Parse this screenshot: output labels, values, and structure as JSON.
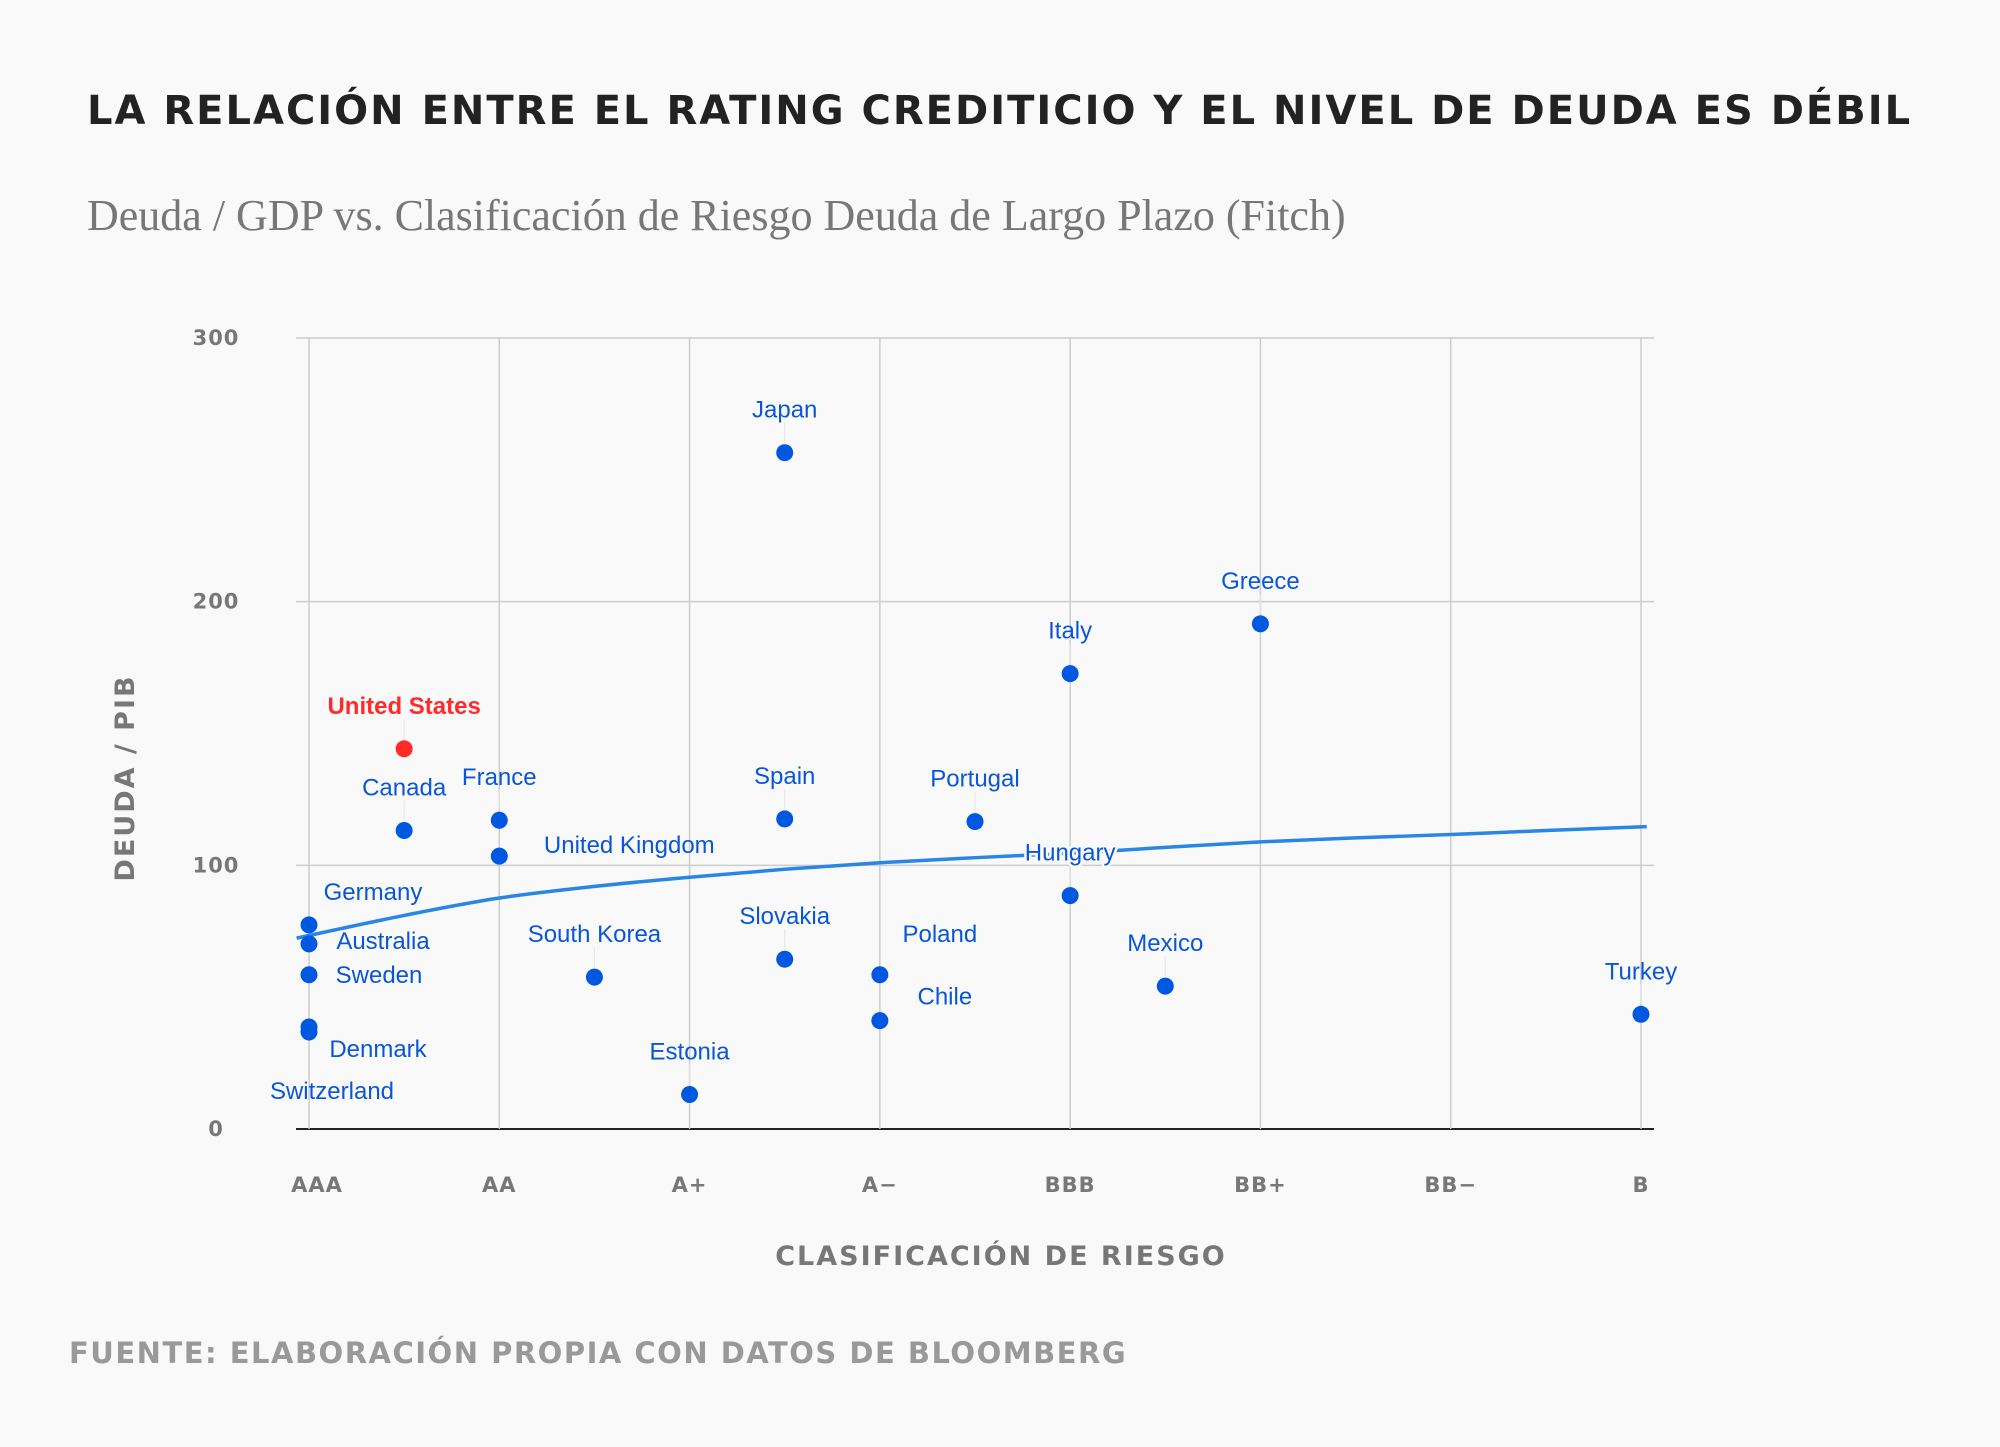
{
  "chart_data": {
    "type": "scatter",
    "title": "LA RELACIÓN ENTRE EL RATING CREDITICIO Y EL NIVEL DE DEUDA ES DÉBIL",
    "subtitle": "Deuda / GDP vs. Clasificación de Riesgo Deuda de Largo Plazo (Fitch)",
    "xlabel": "CLASIFICACIÓN DE RIESGO",
    "ylabel": "DEUDA / PIB",
    "source": "FUENTE: ELABORACIÓN PROPIA CON DATOS DE BLOOMBERG",
    "x_scale": [
      "AAA",
      "AA+",
      "AA",
      "AA-",
      "A+",
      "A",
      "A-",
      "BBB+",
      "BBB",
      "BBB-",
      "BB+",
      "BB",
      "BB-",
      "B+",
      "B"
    ],
    "x_ticks": [
      "AAA",
      "AA",
      "A+",
      "A−",
      "BBB",
      "BB+",
      "BB−",
      "B"
    ],
    "y_ticks": [
      "0",
      "100",
      "200",
      "300"
    ],
    "ylim": [
      0,
      300
    ],
    "grid": true,
    "colors": {
      "point": "#0057e0",
      "highlight": "#ff2b2b",
      "trend": "#2a86e3",
      "label": "#0a56d6",
      "grid": "#cccccc"
    },
    "points": [
      {
        "name": "Japan",
        "rating": "A",
        "y": 256.5
      },
      {
        "name": "Greece",
        "rating": "BB+",
        "y": 191.6
      },
      {
        "name": "Italy",
        "rating": "BBB",
        "y": 172.7
      },
      {
        "name": "United States",
        "rating": "AA+",
        "y": 144.2,
        "highlight": true
      },
      {
        "name": "Spain",
        "rating": "A",
        "y": 117.6
      },
      {
        "name": "Portugal",
        "rating": "BBB+",
        "y": 116.6
      },
      {
        "name": "France",
        "rating": "AA",
        "y": 117.1
      },
      {
        "name": "Canada",
        "rating": "AA+",
        "y": 113.2
      },
      {
        "name": "United Kingdom",
        "rating": "AA",
        "y": 103.5
      },
      {
        "name": "Hungary",
        "rating": "BBB",
        "y": 88.5
      },
      {
        "name": "Germany",
        "rating": "AAA",
        "y": 77.4
      },
      {
        "name": "Australia",
        "rating": "AAA",
        "y": 70.2
      },
      {
        "name": "Slovakia",
        "rating": "A",
        "y": 64.4
      },
      {
        "name": "Poland",
        "rating": "A-",
        "y": 58.5
      },
      {
        "name": "Sweden",
        "rating": "AAA",
        "y": 58.5
      },
      {
        "name": "South Korea",
        "rating": "AA-",
        "y": 57.6
      },
      {
        "name": "Mexico",
        "rating": "BBB-",
        "y": 54.2
      },
      {
        "name": "Turkey",
        "rating": "B",
        "y": 43.5
      },
      {
        "name": "Chile",
        "rating": "A-",
        "y": 41.1
      },
      {
        "name": "Denmark",
        "rating": "AAA",
        "y": 38.7
      },
      {
        "name": "Switzerland",
        "rating": "AAA",
        "y": 36.8
      },
      {
        "name": "Estonia",
        "rating": "A+",
        "y": 13.1
      }
    ],
    "trendline": {
      "type": "logarithmic",
      "points": [
        [
          -0.13,
          72.4
        ],
        [
          1,
          81
        ],
        [
          2,
          87.6
        ],
        [
          3,
          92
        ],
        [
          4,
          95.5
        ],
        [
          5,
          98.5
        ],
        [
          6,
          101
        ],
        [
          7,
          102.9
        ],
        [
          8,
          104.6
        ],
        [
          9,
          106.8
        ],
        [
          10,
          108.9
        ],
        [
          11,
          110.4
        ],
        [
          12,
          111.7
        ],
        [
          13,
          113.2
        ],
        [
          14.06,
          114.7
        ]
      ]
    }
  }
}
